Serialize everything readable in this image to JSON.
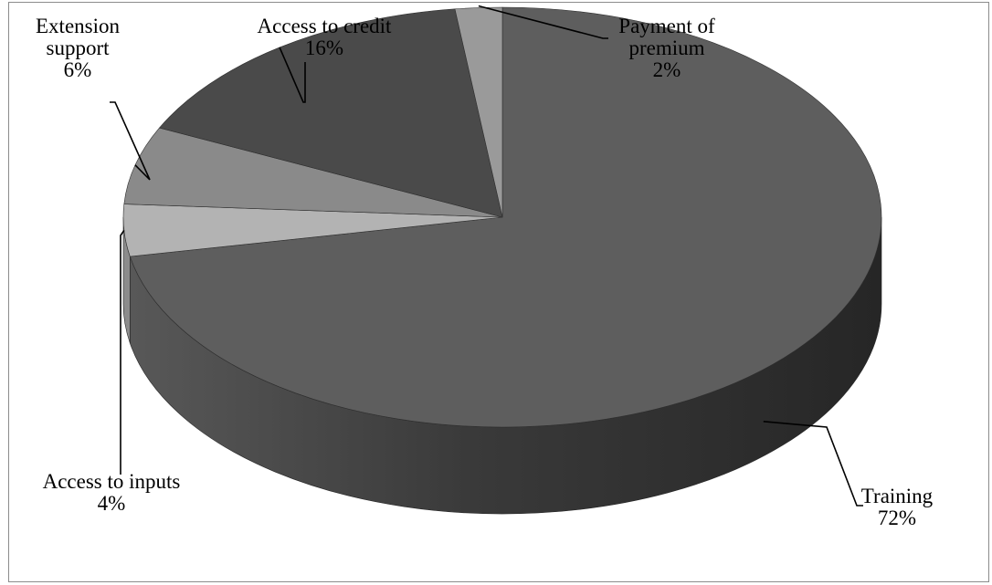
{
  "chart_data": {
    "type": "pie",
    "title": "",
    "categories": [
      "Training",
      "Access to inputs",
      "Extension support",
      "Access to credit",
      "Payment of premium"
    ],
    "values": [
      72,
      4,
      6,
      16,
      2
    ],
    "data_labels": [
      {
        "name_lines": [
          "Training"
        ],
        "pct": "72%"
      },
      {
        "name_lines": [
          "Access to inputs"
        ],
        "pct": "4%"
      },
      {
        "name_lines": [
          "Extension",
          "support"
        ],
        "pct": "6%"
      },
      {
        "name_lines": [
          "Access to credit"
        ],
        "pct": "16%"
      },
      {
        "name_lines": [
          "Payment of",
          "premium"
        ],
        "pct": "2%"
      }
    ],
    "colors": [
      "#5e5e5e",
      "#b3b3b3",
      "#8a8a8a",
      "#4a4a4a",
      "#9a9a9a"
    ],
    "side_colors": [
      "#3a3a3a",
      "#8c8c8c",
      "#6a6a6a",
      "#303030",
      "#777777"
    ],
    "legend": "none",
    "style": "3d"
  }
}
